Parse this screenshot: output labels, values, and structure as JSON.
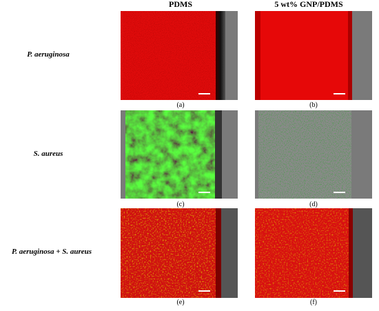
{
  "columns": [
    "PDMS",
    "5 wt% GNP/PDMS"
  ],
  "rows": [
    {
      "label": "P. aeruginosa",
      "panels": [
        "(a)",
        "(b)"
      ]
    },
    {
      "label": "S. aureus",
      "panels": [
        "(c)",
        "(d)"
      ]
    },
    {
      "label": "P. aeruginosa + S. aureus",
      "panels": [
        "(e)",
        "(f)"
      ]
    }
  ]
}
